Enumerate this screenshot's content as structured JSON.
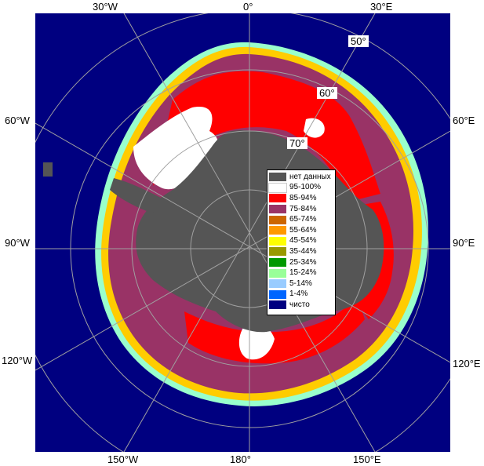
{
  "longitude_labels": {
    "top": [
      "30°W",
      "0°",
      "30°E"
    ],
    "bottom": [
      "150°W",
      "180°",
      "150°E"
    ],
    "left": [
      "60°W",
      "90°W",
      "120°W"
    ],
    "right": [
      "60°E",
      "90°E",
      "120°E"
    ]
  },
  "latitude_labels": [
    "50°",
    "60°",
    "70°"
  ],
  "legend": [
    {
      "label": "нет данных",
      "color": "#555555"
    },
    {
      "label": "95-100%",
      "color": "#ffffff"
    },
    {
      "label": "85-94%",
      "color": "#ff0000"
    },
    {
      "label": "75-84%",
      "color": "#993366"
    },
    {
      "label": "65-74%",
      "color": "#cc6600"
    },
    {
      "label": "55-64%",
      "color": "#ff9900"
    },
    {
      "label": "45-54%",
      "color": "#ffff00"
    },
    {
      "label": "35-44%",
      "color": "#999900"
    },
    {
      "label": "25-34%",
      "color": "#009900"
    },
    {
      "label": "15-24%",
      "color": "#99ff99"
    },
    {
      "label": "5-14%",
      "color": "#99ccff"
    },
    {
      "label": "1-4%",
      "color": "#0066ff"
    },
    {
      "label": "чисто",
      "color": "#000080"
    }
  ],
  "colors": {
    "ocean": "#000080",
    "land": "#555555",
    "graticule": "#a0a0a0"
  }
}
